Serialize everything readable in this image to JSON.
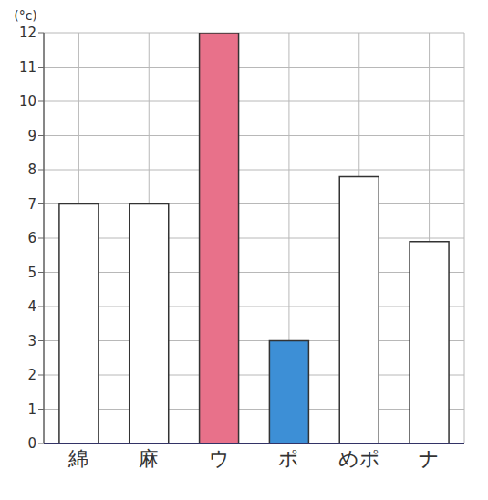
{
  "chart_data": {
    "type": "bar",
    "y_label": "(°c)",
    "categories": [
      "綿",
      "麻",
      "ウ",
      "ポ",
      "めポ",
      "ナ"
    ],
    "values": [
      7,
      7,
      12,
      3,
      7.8,
      5.9
    ],
    "colors": [
      "#ffffff",
      "#ffffff",
      "#e8718a",
      "#3d8fd6",
      "#ffffff",
      "#ffffff"
    ],
    "ylim": [
      0,
      12
    ],
    "yticks": [
      0,
      1,
      2,
      3,
      4,
      5,
      6,
      7,
      8,
      9,
      10,
      11,
      12
    ],
    "grid": true
  }
}
